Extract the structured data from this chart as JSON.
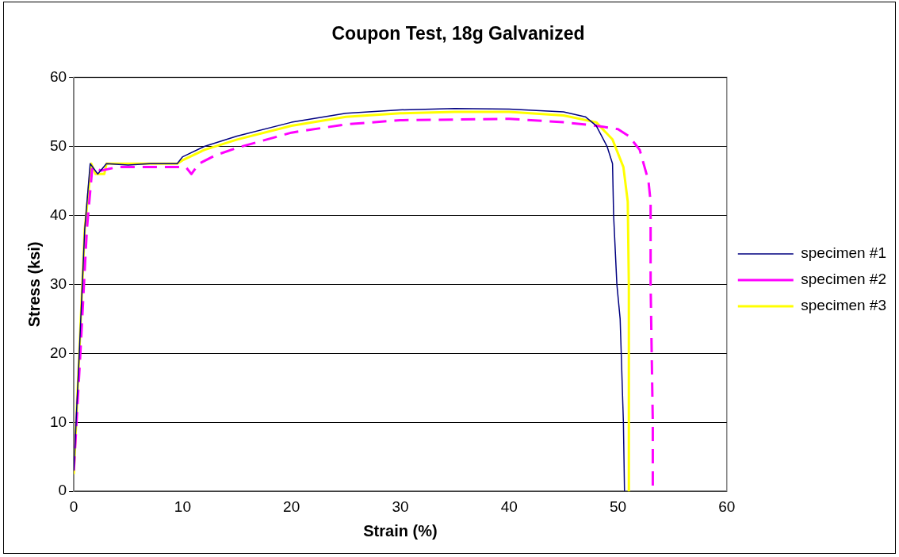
{
  "chart_data": {
    "type": "line",
    "title": "Coupon Test, 18g Galvanized",
    "xlabel": "Strain (%)",
    "ylabel": "Stress (ksi)",
    "xlim": [
      0,
      60
    ],
    "xticks": [
      0,
      10,
      20,
      30,
      40,
      50,
      60
    ],
    "ylim": [
      0,
      60
    ],
    "yticks": [
      0,
      10,
      20,
      30,
      40,
      50,
      60
    ],
    "grid": "y",
    "legend": "right",
    "marker": "none",
    "series": [
      {
        "name": "specimen #1",
        "color": "#000080",
        "line_style": "solid",
        "x": [
          0,
          0.5,
          1.0,
          1.5,
          2.2,
          3,
          5,
          7,
          9.5,
          10,
          12,
          15,
          20,
          25,
          30,
          35,
          40,
          45,
          47,
          48,
          49,
          49.5,
          49.6,
          49.9,
          50.2,
          50.3,
          50.5,
          50.6
        ],
        "values": [
          3,
          20,
          38,
          47.5,
          46,
          47.5,
          47.3,
          47.5,
          47.5,
          48.5,
          50,
          51.5,
          53.5,
          54.8,
          55.3,
          55.5,
          55.4,
          55,
          54.3,
          53,
          50,
          47.5,
          40,
          30,
          25,
          20,
          10,
          0
        ]
      },
      {
        "name": "specimen #2",
        "color": "#ff00ff",
        "line_style": "dashed",
        "x": [
          0,
          0.6,
          1.2,
          1.7,
          2.5,
          4,
          9,
          10.3,
          10.8,
          11.5,
          13,
          15,
          20,
          25,
          30,
          40,
          45,
          48,
          50,
          51,
          52,
          52.8,
          53.0,
          53.0,
          53.1,
          53.2,
          53.2
        ],
        "values": [
          3,
          20,
          38,
          47,
          46.5,
          47,
          47,
          47,
          46,
          47.5,
          48.7,
          49.8,
          52,
          53.2,
          53.8,
          54,
          53.5,
          53,
          52.5,
          51.5,
          49.5,
          45,
          42,
          30,
          20,
          10,
          0
        ]
      },
      {
        "name": "specimen #3",
        "color": "#ffff00",
        "line_style": "solid",
        "x": [
          0,
          0.5,
          1.0,
          1.6,
          2.0,
          2.8,
          3,
          6,
          9.5,
          10,
          12,
          15,
          20,
          25,
          30,
          35,
          40,
          45,
          48,
          49.5,
          50.5,
          50.9,
          51,
          51
        ],
        "values": [
          2.5,
          20,
          38,
          47.5,
          46,
          46,
          47.5,
          47.5,
          47.5,
          48,
          49.5,
          51,
          53,
          54.3,
          54.8,
          55,
          55,
          54.5,
          53.5,
          51,
          47,
          42,
          30,
          0
        ]
      }
    ]
  }
}
